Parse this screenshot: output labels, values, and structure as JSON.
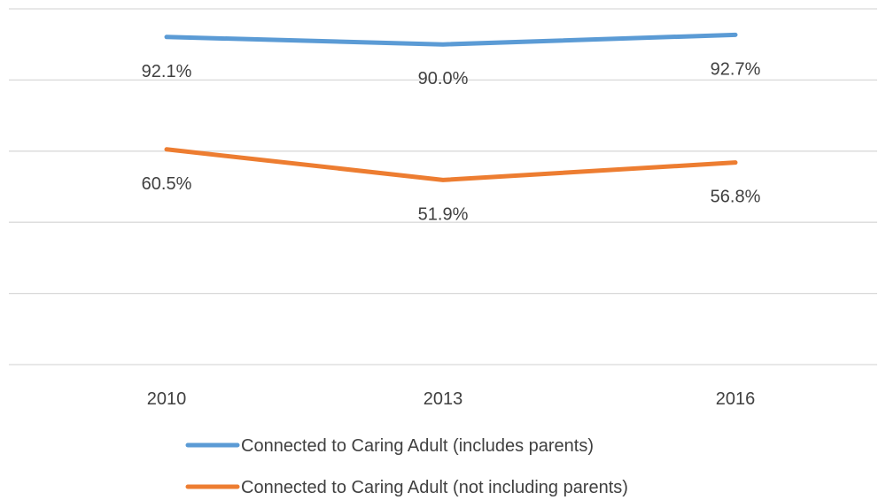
{
  "chart_data": {
    "type": "line",
    "categories": [
      "2010",
      "2013",
      "2016"
    ],
    "series": [
      {
        "name": "Connected to Caring Adult (includes parents)",
        "values": [
          92.1,
          90.0,
          92.7
        ],
        "labels": [
          "92.1%",
          "90.0%",
          "92.7%"
        ],
        "color": "#5B9BD5"
      },
      {
        "name": "Connected to Caring Adult (not including parents)",
        "values": [
          60.5,
          51.9,
          56.8
        ],
        "labels": [
          "60.5%",
          "51.9%",
          "56.8%"
        ],
        "color": "#ED7D31"
      }
    ],
    "ylim": [
      0,
      100
    ],
    "grid": true,
    "grid_color": "#D9D9D9",
    "legend_position": "bottom"
  }
}
